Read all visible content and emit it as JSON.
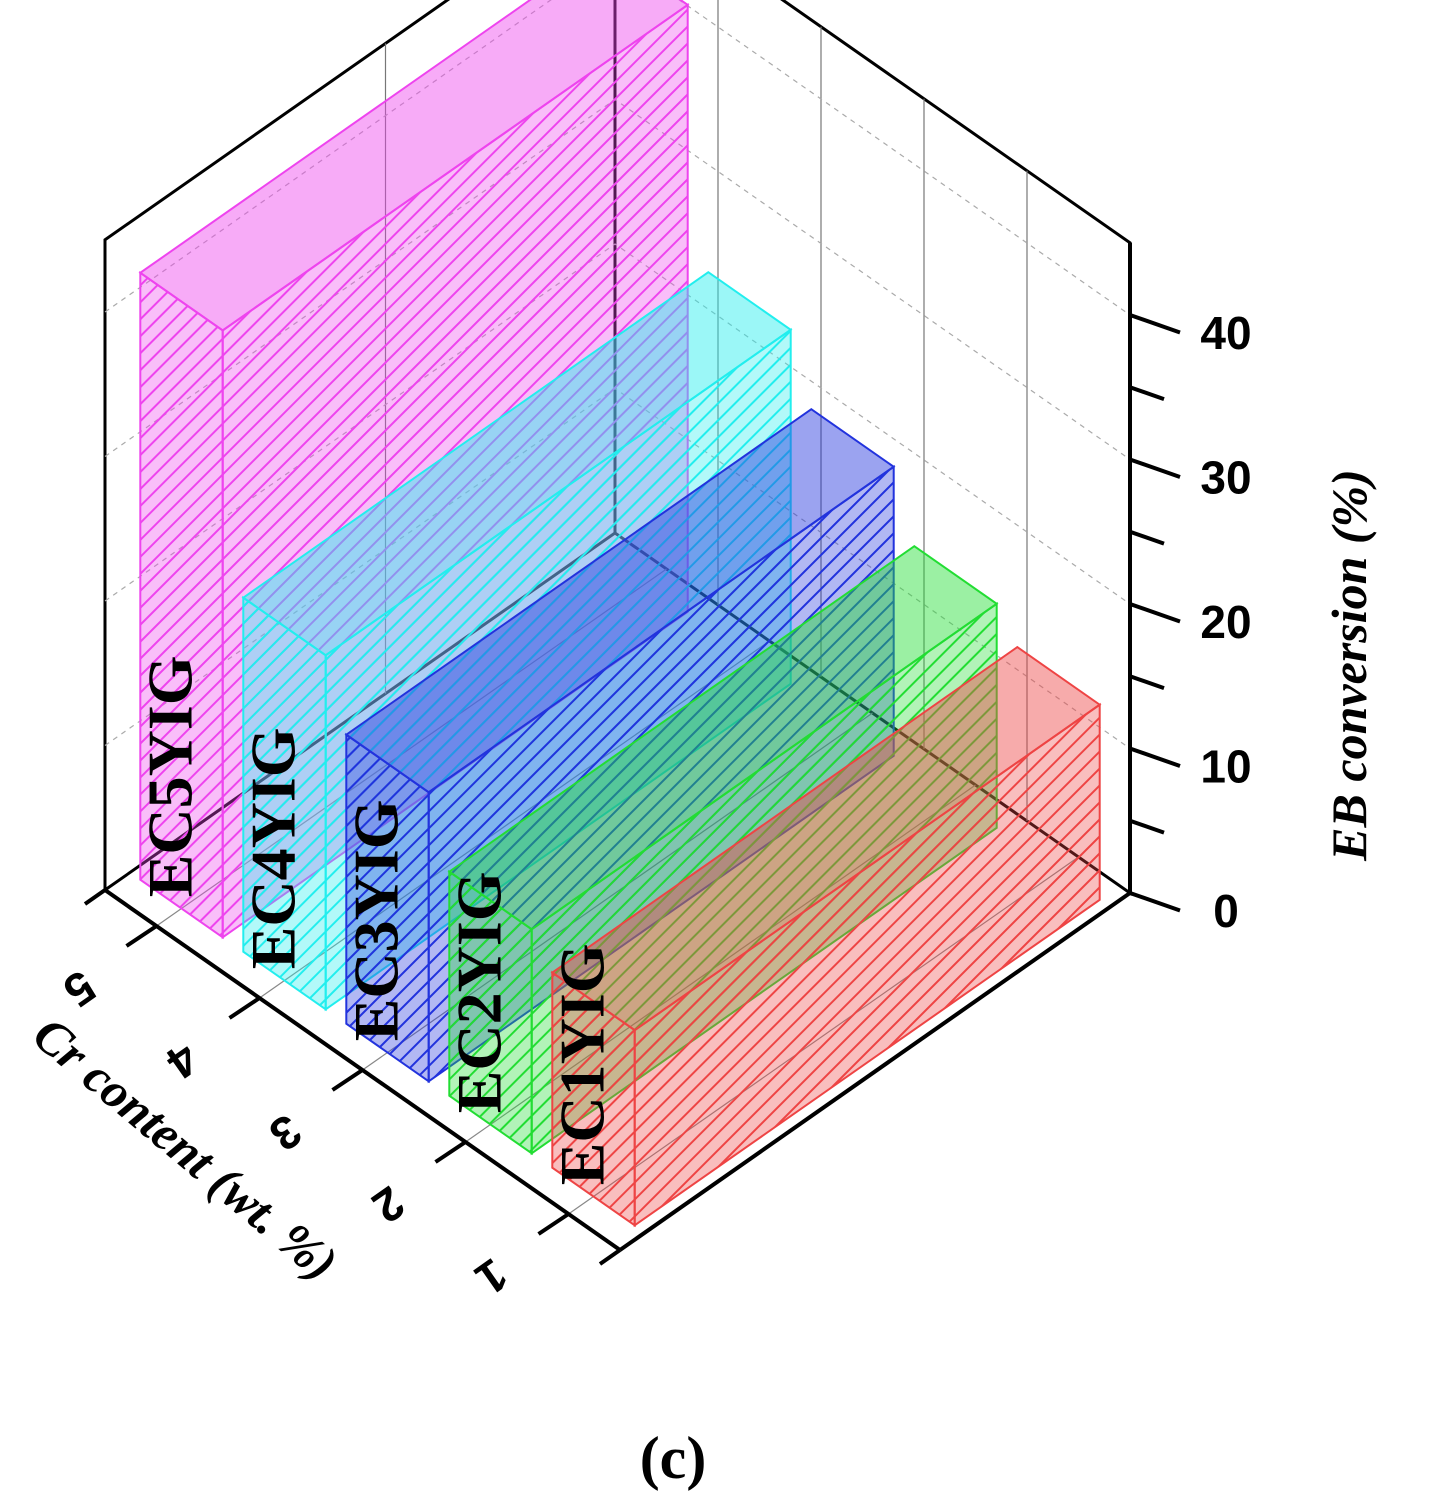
{
  "chart_data": {
    "type": "bar3d",
    "panel_label": "(c)",
    "categories": [
      "1",
      "2",
      "3",
      "4",
      "5"
    ],
    "x_axis_title": "Cr content (wt. %)",
    "z_axis_title": "EB conversion (%)",
    "z_ticks": [
      "0",
      "10",
      "20",
      "30",
      "40"
    ],
    "z_range": [
      0,
      45
    ],
    "grid": true,
    "bars": [
      {
        "label": "EC1YIG",
        "category": "1",
        "value": 13.5,
        "color": "#ee4444"
      },
      {
        "label": "EC2YIG",
        "category": "2",
        "value": 15.5,
        "color": "#22dd33"
      },
      {
        "label": "EC3YIG",
        "category": "3",
        "value": 20.0,
        "color": "#2233dd"
      },
      {
        "label": "EC4YIG",
        "category": "4",
        "value": 24.5,
        "color": "#22eeee"
      },
      {
        "label": "EC5YIG",
        "category": "5",
        "value": 42.0,
        "color": "#ee44ee"
      }
    ]
  }
}
